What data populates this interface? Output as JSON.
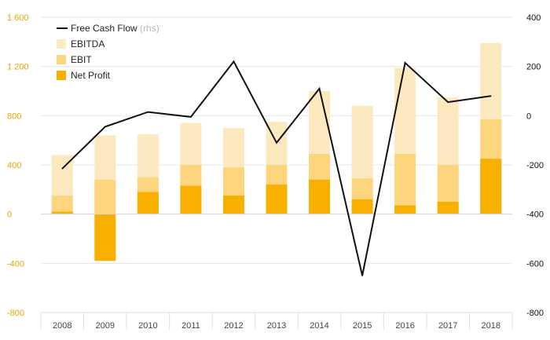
{
  "chart_data": {
    "type": "bar",
    "categories": [
      "2008",
      "2009",
      "2010",
      "2011",
      "2012",
      "2013",
      "2014",
      "2015",
      "2016",
      "2017",
      "2018"
    ],
    "series": [
      {
        "name": "EBITDA",
        "kind": "bar",
        "axis": "left",
        "color": "#fde9c0",
        "values": [
          480,
          640,
          650,
          740,
          700,
          750,
          1000,
          880,
          1190,
          950,
          1390
        ]
      },
      {
        "name": "EBIT",
        "kind": "bar",
        "axis": "left",
        "color": "#fdd57f",
        "values": [
          150,
          280,
          300,
          400,
          380,
          400,
          490,
          290,
          490,
          400,
          770
        ]
      },
      {
        "name": "Net Profit",
        "kind": "bar",
        "axis": "left",
        "color": "#f7b000",
        "values": [
          20,
          -380,
          180,
          230,
          150,
          240,
          280,
          120,
          70,
          100,
          450
        ]
      },
      {
        "name": "Free Cash Flow",
        "kind": "line",
        "axis": "right",
        "color": "#111111",
        "values": [
          -215,
          -45,
          15,
          -5,
          220,
          -110,
          110,
          -650,
          215,
          55,
          80
        ]
      }
    ],
    "legend_rhs_suffix": "(rhs)",
    "y_left": {
      "min": -800,
      "max": 1600,
      "ticks": [
        "-800",
        "-400",
        "0",
        "400",
        "800",
        "1 200",
        "1 600"
      ],
      "tick_values": [
        -800,
        -400,
        0,
        400,
        800,
        1200,
        1600
      ],
      "color": "#e8a400"
    },
    "y_right": {
      "min": -800,
      "max": 400,
      "ticks": [
        "-800",
        "-600",
        "-400",
        "-200",
        "0",
        "200",
        "400"
      ],
      "tick_values": [
        -800,
        -600,
        -400,
        -200,
        0,
        200,
        400
      ],
      "color": "#111111"
    },
    "grid": true,
    "legend": "top-left"
  }
}
